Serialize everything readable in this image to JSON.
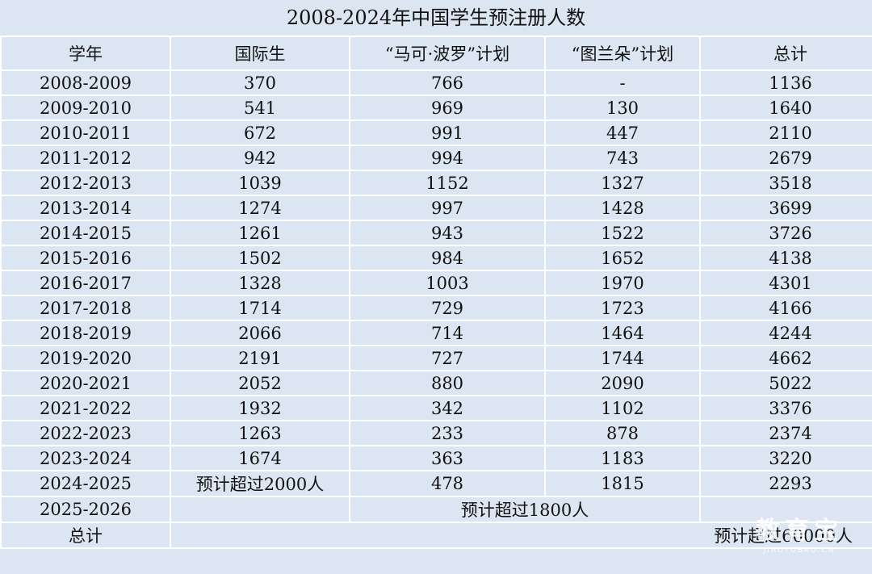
{
  "title": "2008-2024年中国学生预注册人数",
  "headers": [
    "学年",
    "国际生",
    "“马可·波罗”计划",
    "“图兰朵”计划",
    "总计"
  ],
  "rows": [
    [
      "2008-2009",
      "370",
      "766",
      "-",
      "1136"
    ],
    [
      "2009-2010",
      "541",
      "969",
      "130",
      "1640"
    ],
    [
      "2010-2011",
      "672",
      "991",
      "447",
      "2110"
    ],
    [
      "2011-2012",
      "942",
      "994",
      "743",
      "2679"
    ],
    [
      "2012-2013",
      "1039",
      "1152",
      "1327",
      "3518"
    ],
    [
      "2013-2014",
      "1274",
      "997",
      "1428",
      "3699"
    ],
    [
      "2014-2015",
      "1261",
      "943",
      "1522",
      "3726"
    ],
    [
      "2015-2016",
      "1502",
      "984",
      "1652",
      "4138"
    ],
    [
      "2016-2017",
      "1328",
      "1003",
      "1970",
      "4301"
    ],
    [
      "2017-2018",
      "1714",
      "729",
      "1723",
      "4166"
    ],
    [
      "2018-2019",
      "2066",
      "714",
      "1464",
      "4244"
    ],
    [
      "2019-2020",
      "2191",
      "727",
      "1744",
      "4662"
    ],
    [
      "2020-2021",
      "2052",
      "880",
      "2090",
      "5022"
    ],
    [
      "2021-2022",
      "1932",
      "342",
      "1102",
      "3376"
    ],
    [
      "2022-2023",
      "1263",
      "233",
      "878",
      "2374"
    ],
    [
      "2023-2024",
      "1674",
      "363",
      "1183",
      "3220"
    ],
    [
      "2024-2025",
      "预计超过2000人",
      "478",
      "1815",
      "2293"
    ]
  ],
  "row_2025": {
    "year": "2025-2026",
    "note": "预计超过1800人"
  },
  "total_row": {
    "label": "总计",
    "note": "预计超过60000人"
  },
  "watermark": {
    "main": "教育宝",
    "sub": "JIAOYUBAO.CN"
  },
  "colors": {
    "background": "#dce6f2",
    "grid": "#ffffff",
    "text": "#111111"
  }
}
